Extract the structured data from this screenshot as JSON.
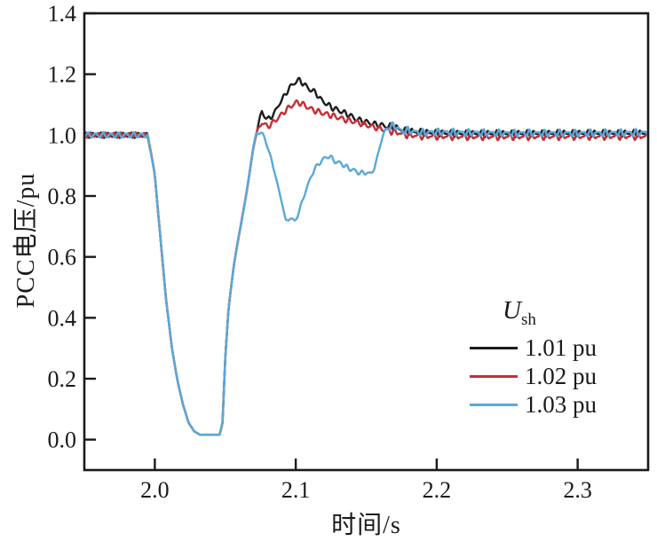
{
  "figure": {
    "background": "#ffffff",
    "frame_color": "#1a1a1a",
    "text_color": "#1a1a1a"
  },
  "chart_data": {
    "type": "line",
    "title": "",
    "xlabel": "时间/s",
    "ylabel": "PCC电压/pu",
    "xlim": [
      1.95,
      2.35
    ],
    "ylim": [
      -0.1,
      1.4
    ],
    "grid": false,
    "tick_direction": "in",
    "xticks": {
      "values": [
        2.0,
        2.1,
        2.2,
        2.3
      ],
      "labels": [
        "2.0",
        "2.1",
        "2.2",
        "2.3"
      ]
    },
    "yticks": {
      "values": [
        0.0,
        0.2,
        0.4,
        0.6,
        0.8,
        1.0,
        1.2,
        1.4
      ],
      "labels": [
        "0.0",
        "0.2",
        "0.4",
        "0.6",
        "0.8",
        "1.0",
        "1.2",
        "1.4"
      ]
    },
    "legend": {
      "title_main": "U",
      "title_sub": "sh",
      "position": "lower right"
    },
    "ripple": {
      "amp1": 0.0075,
      "wl1": 0.0054,
      "amp2_early": 0.002,
      "amp2_late": 0.005,
      "late_from": 2.165,
      "wl2": 0.0036
    },
    "common_prefix": [
      [
        1.95,
        1.0
      ],
      [
        1.995,
        1.0
      ],
      [
        2.0,
        0.87
      ],
      [
        2.004,
        0.66
      ],
      [
        2.008,
        0.46
      ],
      [
        2.012,
        0.305
      ],
      [
        2.016,
        0.195
      ],
      [
        2.02,
        0.115
      ],
      [
        2.024,
        0.055
      ],
      [
        2.028,
        0.027
      ],
      [
        2.032,
        0.016
      ],
      [
        2.046,
        0.016
      ],
      [
        2.048,
        0.055
      ],
      [
        2.05,
        0.27
      ],
      [
        2.0525,
        0.44
      ],
      [
        2.056,
        0.57
      ],
      [
        2.06,
        0.68
      ],
      [
        2.064,
        0.78
      ],
      [
        2.067,
        0.87
      ],
      [
        2.07,
        0.96
      ],
      [
        2.072,
        1.005
      ]
    ],
    "series": [
      {
        "name": "1.01 pu",
        "color": "#1d1d1f",
        "width": 2.4,
        "phase1": 0.0,
        "phase2": 1.2,
        "points": [
          [
            2.0745,
            1.056
          ],
          [
            2.076,
            1.078
          ],
          [
            2.078,
            1.062
          ],
          [
            2.08,
            1.05
          ],
          [
            2.0825,
            1.06
          ],
          [
            2.085,
            1.074
          ],
          [
            2.088,
            1.1
          ],
          [
            2.092,
            1.13
          ],
          [
            2.096,
            1.158
          ],
          [
            2.1,
            1.176
          ],
          [
            2.103,
            1.18
          ],
          [
            2.106,
            1.166
          ],
          [
            2.11,
            1.15
          ],
          [
            2.114,
            1.14
          ],
          [
            2.118,
            1.116
          ],
          [
            2.122,
            1.102
          ],
          [
            2.126,
            1.09
          ],
          [
            2.13,
            1.082
          ],
          [
            2.134,
            1.074
          ],
          [
            2.138,
            1.066
          ],
          [
            2.142,
            1.054
          ],
          [
            2.146,
            1.048
          ],
          [
            2.15,
            1.043
          ],
          [
            2.155,
            1.037
          ],
          [
            2.16,
            1.033
          ],
          [
            2.165,
            1.029
          ],
          [
            2.17,
            1.026
          ],
          [
            2.175,
            1.018
          ],
          [
            2.18,
            1.013
          ],
          [
            2.19,
            1.009
          ],
          [
            2.2,
            1.007
          ],
          [
            2.22,
            1.005
          ],
          [
            2.25,
            1.005
          ],
          [
            2.3,
            1.006
          ],
          [
            2.35,
            1.006
          ]
        ]
      },
      {
        "name": "1.02 pu",
        "color": "#c62d36",
        "width": 2.4,
        "phase1": 2.1,
        "phase2": 3.4,
        "points": [
          [
            2.0745,
            1.03
          ],
          [
            2.076,
            1.042
          ],
          [
            2.078,
            1.034
          ],
          [
            2.08,
            1.028
          ],
          [
            2.083,
            1.038
          ],
          [
            2.086,
            1.05
          ],
          [
            2.09,
            1.068
          ],
          [
            2.094,
            1.086
          ],
          [
            2.098,
            1.1
          ],
          [
            2.101,
            1.108
          ],
          [
            2.104,
            1.104
          ],
          [
            2.108,
            1.093
          ],
          [
            2.112,
            1.083
          ],
          [
            2.116,
            1.077
          ],
          [
            2.12,
            1.071
          ],
          [
            2.125,
            1.065
          ],
          [
            2.13,
            1.058
          ],
          [
            2.135,
            1.051
          ],
          [
            2.14,
            1.046
          ],
          [
            2.145,
            1.04
          ],
          [
            2.15,
            1.033
          ],
          [
            2.155,
            1.027
          ],
          [
            2.16,
            1.021
          ],
          [
            2.165,
            1.016
          ],
          [
            2.17,
            1.011
          ],
          [
            2.175,
            1.005
          ],
          [
            2.18,
            1.0
          ],
          [
            2.19,
            0.997
          ],
          [
            2.2,
            0.996
          ],
          [
            2.22,
            0.995
          ],
          [
            2.25,
            0.995
          ],
          [
            2.3,
            0.996
          ],
          [
            2.35,
            0.996
          ]
        ]
      },
      {
        "name": "1.03 pu",
        "color": "#59a9d8",
        "width": 2.4,
        "phase1": 4.2,
        "phase2": 5.5,
        "points": [
          [
            2.074,
            1.012
          ],
          [
            2.077,
            1.0
          ],
          [
            2.08,
            0.962
          ],
          [
            2.083,
            0.915
          ],
          [
            2.086,
            0.858
          ],
          [
            2.089,
            0.8
          ],
          [
            2.091,
            0.762
          ],
          [
            2.093,
            0.714
          ],
          [
            2.096,
            0.73
          ],
          [
            2.099,
            0.716
          ],
          [
            2.101,
            0.73
          ],
          [
            2.104,
            0.775
          ],
          [
            2.107,
            0.815
          ],
          [
            2.11,
            0.855
          ],
          [
            2.113,
            0.885
          ],
          [
            2.116,
            0.905
          ],
          [
            2.12,
            0.922
          ],
          [
            2.123,
            0.932
          ],
          [
            2.126,
            0.922
          ],
          [
            2.129,
            0.91
          ],
          [
            2.132,
            0.908
          ],
          [
            2.135,
            0.898
          ],
          [
            2.138,
            0.89
          ],
          [
            2.141,
            0.885
          ],
          [
            2.144,
            0.878
          ],
          [
            2.147,
            0.875
          ],
          [
            2.15,
            0.878
          ],
          [
            2.152,
            0.872
          ],
          [
            2.154,
            0.876
          ],
          [
            2.156,
            0.895
          ],
          [
            2.158,
            0.93
          ],
          [
            2.16,
            0.97
          ],
          [
            2.162,
            1.0
          ],
          [
            2.164,
            1.018
          ],
          [
            2.167,
            1.028
          ],
          [
            2.17,
            1.032
          ],
          [
            2.173,
            1.02
          ],
          [
            2.176,
            1.012
          ],
          [
            2.18,
            1.016
          ],
          [
            2.185,
            1.01
          ],
          [
            2.19,
            1.008
          ],
          [
            2.2,
            1.01
          ],
          [
            2.22,
            1.008
          ],
          [
            2.25,
            1.006
          ],
          [
            2.3,
            1.006
          ],
          [
            2.35,
            1.008
          ]
        ]
      }
    ]
  }
}
